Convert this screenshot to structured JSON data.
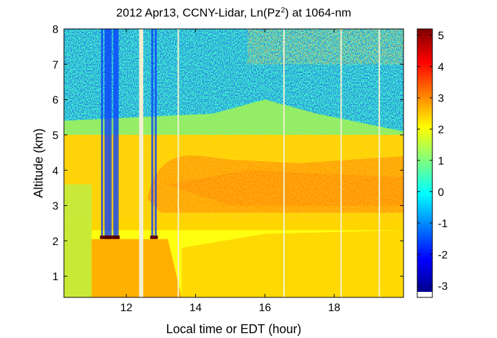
{
  "chart_data": {
    "type": "heatmap",
    "title": {
      "prefix": "2012 Apr13, CCNY-Lidar, Ln(Pz",
      "superscript": "2",
      "suffix": ") at 1064-nm"
    },
    "xlabel": "Local time or EDT (hour)",
    "ylabel": "Altitude (km)",
    "xlim": [
      10.2,
      20.0
    ],
    "ylim": [
      0.4,
      8.0
    ],
    "xticks": [
      12,
      14,
      16,
      18
    ],
    "xtick_labels": [
      "12",
      "14",
      "16",
      "18"
    ],
    "yticks": [
      1,
      2,
      3,
      4,
      5,
      6,
      7,
      8
    ],
    "ytick_labels": [
      "1",
      "2",
      "3",
      "4",
      "5",
      "6",
      "7",
      "8"
    ],
    "colorbar": {
      "colormap": "jet",
      "range": [
        -3.2,
        5.2
      ],
      "ticks": [
        -3,
        -2,
        -1,
        0,
        1,
        2,
        3,
        4,
        5
      ],
      "tick_labels": [
        "-3",
        "-2",
        "-1",
        "0",
        "1",
        "2",
        "3",
        "4",
        "5"
      ]
    },
    "features": {
      "boundary_layer_top_km": 2.05,
      "aerosol_layer_km": [
        2.6,
        5.2
      ],
      "aerosol_layer_peak_value": 3.2,
      "cloud_hours": [
        11.3,
        11.4,
        11.45,
        11.5,
        11.55,
        11.65,
        11.7,
        11.75,
        12.75,
        12.85
      ],
      "data_gap_hours": [
        12.43,
        13.5,
        16.55,
        18.2,
        19.3
      ]
    },
    "colors": {
      "background": "#ffffff",
      "axis": "#000000",
      "gap": "#f3f0d2",
      "cloud": "#5a0000"
    }
  }
}
